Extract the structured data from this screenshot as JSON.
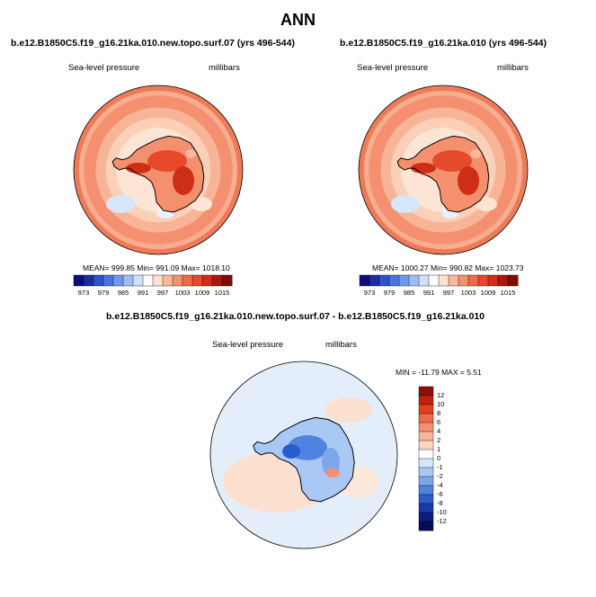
{
  "title": "ANN",
  "panels": [
    {
      "case": "b.e12.B1850C5.f19_g16.21ka.010.new.topo.surf.07 (yrs 496-544)",
      "variable": "Sea-level pressure",
      "units": "millibars",
      "stats": "MEAN= 999.85  Min= 991.09  Max= 1018.10"
    },
    {
      "case": "b.e12.B1850C5.f19_g16.21ka.010 (yrs 496-544)",
      "variable": "Sea-level pressure",
      "units": "millibars",
      "stats": "MEAN= 1000.27  Min= 990.82  Max= 1023.73"
    }
  ],
  "abs_colorbar": {
    "ticks": [
      "973",
      "979",
      "985",
      "991",
      "997",
      "1003",
      "1009",
      "1015"
    ],
    "colors": [
      "#0c0c7c",
      "#1c2ca0",
      "#2f52cc",
      "#4a74e0",
      "#7098ea",
      "#9fbcf2",
      "#cfe0fa",
      "#ffffff",
      "#fde0cf",
      "#f9b89e",
      "#f4906e",
      "#ee6a48",
      "#e54a2a",
      "#cf2e16",
      "#a8180c",
      "#7c0c06"
    ]
  },
  "diff": {
    "title": "b.e12.B1850C5.f19_g16.21ka.010.new.topo.surf.07 - b.e12.B1850C5.f19_g16.21ka.010",
    "variable": "Sea-level pressure",
    "units": "millibars",
    "minmax": "MIN = -11.79 MAX =   5.51",
    "colorbar_ticks": [
      "12",
      "10",
      "8",
      "6",
      "4",
      "2",
      "1",
      "0",
      "-1",
      "-2",
      "-4",
      "-6",
      "-8",
      "-10",
      "-12"
    ],
    "colorbar_colors": [
      "#8e0d05",
      "#c0200d",
      "#e0401e",
      "#ee6a48",
      "#f49070",
      "#f8b496",
      "#fbd5c0",
      "#ffffff",
      "#d6e6fb",
      "#aac8f4",
      "#7ea6ec",
      "#5082e0",
      "#2c5ccc",
      "#1a38a8",
      "#0c1c80",
      "#060c58"
    ]
  }
}
